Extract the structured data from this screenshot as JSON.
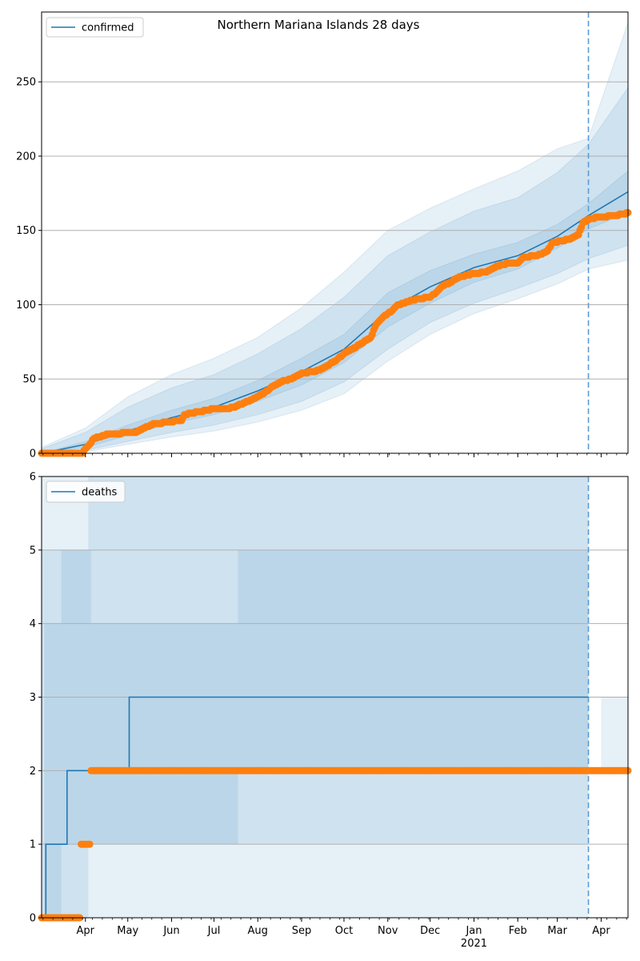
{
  "figure": {
    "title": "Northern Mariana Islands 28 days"
  },
  "colors": {
    "model": "#1f77b4",
    "observed": "#ff7f0e",
    "band": "#1f77b4",
    "grid": "#b0b0b0",
    "forecast_line": "#5b9bd5"
  },
  "chart_data": [
    {
      "type": "line",
      "legend": "confirmed",
      "legend_position": "top-left",
      "grid": "y",
      "x_range": [
        "2020-03-01",
        "2021-04-20"
      ],
      "forecast_start": "2021-03-23",
      "ylim": [
        0,
        297
      ],
      "yticks": [
        0,
        50,
        100,
        150,
        200,
        250
      ],
      "xticks": [
        {
          "date": "2020-04-01",
          "label": "Apr"
        },
        {
          "date": "2020-05-01",
          "label": "May"
        },
        {
          "date": "2020-06-01",
          "label": "Jun"
        },
        {
          "date": "2020-07-01",
          "label": "Jul"
        },
        {
          "date": "2020-08-01",
          "label": "Aug"
        },
        {
          "date": "2020-09-01",
          "label": "Sep"
        },
        {
          "date": "2020-10-01",
          "label": "Oct"
        },
        {
          "date": "2020-11-01",
          "label": "Nov"
        },
        {
          "date": "2020-12-01",
          "label": "Dec"
        },
        {
          "date": "2021-01-01",
          "label": "Jan",
          "sublabel": "2021"
        },
        {
          "date": "2021-02-01",
          "label": "Feb"
        },
        {
          "date": "2021-03-01",
          "label": "Mar"
        },
        {
          "date": "2021-04-01",
          "label": "Apr"
        }
      ],
      "model": {
        "dates": [
          "2020-03-01",
          "2020-04-01",
          "2020-05-01",
          "2020-06-01",
          "2020-07-01",
          "2020-08-01",
          "2020-09-01",
          "2020-10-01",
          "2020-11-01",
          "2020-12-01",
          "2021-01-01",
          "2021-02-01",
          "2021-03-01",
          "2021-03-23",
          "2021-04-20"
        ],
        "mean": [
          0,
          6,
          15,
          24,
          31,
          42,
          55,
          70,
          96,
          112,
          125,
          133,
          146,
          160,
          176
        ],
        "p25": [
          0,
          4,
          12,
          20,
          26,
          35,
          46,
          61,
          85,
          101,
          115,
          124,
          138,
          151,
          162
        ],
        "p75": [
          0,
          8,
          19,
          29,
          37,
          49,
          64,
          80,
          108,
          123,
          134,
          142,
          154,
          168,
          190
        ],
        "p05": [
          0,
          2,
          8,
          14,
          19,
          26,
          35,
          48,
          70,
          88,
          101,
          111,
          121,
          131,
          140
        ],
        "p95": [
          3,
          14,
          31,
          44,
          53,
          67,
          84,
          105,
          133,
          149,
          163,
          172,
          189,
          208,
          246
        ],
        "p01": [
          0,
          1,
          6,
          11,
          15,
          21,
          29,
          40,
          62,
          80,
          94,
          104,
          114,
          124,
          130
        ],
        "p99": [
          4,
          17,
          38,
          53,
          64,
          78,
          98,
          122,
          150,
          165,
          178,
          190,
          205,
          212,
          290
        ]
      },
      "observed": {
        "dates": [
          "2020-03-01",
          "2020-03-30",
          "2020-03-31",
          "2020-04-04",
          "2020-04-07",
          "2020-04-14",
          "2020-04-17",
          "2020-05-07",
          "2020-05-10",
          "2020-05-15",
          "2020-05-20",
          "2020-06-01",
          "2020-06-05",
          "2020-06-08",
          "2020-06-10",
          "2020-07-01",
          "2020-07-05",
          "2020-07-10",
          "2020-07-15",
          "2020-07-25",
          "2020-08-01",
          "2020-08-05",
          "2020-08-10",
          "2020-08-17",
          "2020-08-25",
          "2020-09-01",
          "2020-09-10",
          "2020-09-16",
          "2020-09-21",
          "2020-09-25",
          "2020-10-01",
          "2020-10-05",
          "2020-10-10",
          "2020-10-15",
          "2020-10-20",
          "2020-10-23",
          "2020-10-25",
          "2020-10-29",
          "2020-11-04",
          "2020-11-07",
          "2020-11-09",
          "2020-11-15",
          "2020-11-22",
          "2020-12-01",
          "2020-12-05",
          "2020-12-10",
          "2020-12-16",
          "2020-12-20",
          "2021-01-01",
          "2021-01-10",
          "2021-01-15",
          "2021-01-25",
          "2021-02-01",
          "2021-02-05",
          "2021-02-14",
          "2021-02-18",
          "2021-02-22",
          "2021-02-26",
          "2021-03-05",
          "2021-03-12",
          "2021-03-16",
          "2021-03-19",
          "2021-03-24",
          "2021-04-01",
          "2021-04-10",
          "2021-04-17",
          "2021-04-20"
        ],
        "values": [
          0,
          0,
          2,
          6,
          10,
          12,
          13,
          14,
          16,
          18,
          20,
          21,
          22,
          22,
          26,
          30,
          30,
          30,
          31,
          35,
          38,
          40,
          44,
          48,
          50,
          54,
          55,
          57,
          60,
          62,
          67,
          69,
          72,
          75,
          78,
          85,
          88,
          92,
          96,
          99,
          100,
          102,
          104,
          105,
          108,
          113,
          115,
          118,
          121,
          122,
          125,
          128,
          128,
          132,
          133,
          134,
          136,
          142,
          143,
          145,
          147,
          155,
          158,
          159,
          160,
          161,
          162
        ]
      }
    },
    {
      "type": "line",
      "legend": "deaths",
      "legend_position": "top-left",
      "grid": "y",
      "x_range": [
        "2020-03-01",
        "2021-04-20"
      ],
      "forecast_start": "2021-03-23",
      "ylim": [
        0,
        6
      ],
      "yticks": [
        0,
        1,
        2,
        3,
        4,
        5,
        6
      ],
      "model": {
        "step_dates": [
          "2020-03-01",
          "2020-03-04",
          "2020-03-19",
          "2020-05-02",
          "2021-03-23"
        ],
        "step_values": [
          0,
          1,
          2,
          3,
          3
        ]
      },
      "bands": [
        {
          "level": "p01-p99",
          "segments": [
            {
              "from": "2020-03-01",
              "to": "2020-03-07",
              "low": 0,
              "high": 6
            },
            {
              "from": "2020-03-07",
              "to": "2020-04-18",
              "low": 0,
              "high": 6
            },
            {
              "from": "2020-04-18",
              "to": "2021-03-23",
              "low": 0,
              "high": 6
            },
            {
              "from": "2021-04-01",
              "to": "2021-04-20",
              "low": 2,
              "high": 3
            }
          ]
        },
        {
          "level": "p05-p95",
          "segments": [
            {
              "from": "2020-03-01",
              "to": "2020-04-03",
              "low": 0,
              "high": 5
            },
            {
              "from": "2020-04-03",
              "to": "2020-05-06",
              "low": 1,
              "high": 6
            },
            {
              "from": "2020-05-06",
              "to": "2021-03-23",
              "low": 1,
              "high": 6
            }
          ]
        },
        {
          "level": "p25-p75",
          "segments": [
            {
              "from": "2020-03-03",
              "to": "2020-03-15",
              "low": 0,
              "high": 4
            },
            {
              "from": "2020-03-15",
              "to": "2020-04-05",
              "low": 1,
              "high": 5
            },
            {
              "from": "2020-04-05",
              "to": "2020-07-18",
              "low": 1,
              "high": 4
            },
            {
              "from": "2020-07-18",
              "to": "2021-03-23",
              "low": 2,
              "high": 5
            }
          ]
        }
      ],
      "observed": {
        "dates": [
          "2020-03-01",
          "2020-03-28",
          "2020-03-29",
          "2020-04-04",
          "2020-04-05",
          "2021-04-20"
        ],
        "values": [
          0,
          0,
          1,
          1,
          2,
          2
        ]
      }
    }
  ]
}
